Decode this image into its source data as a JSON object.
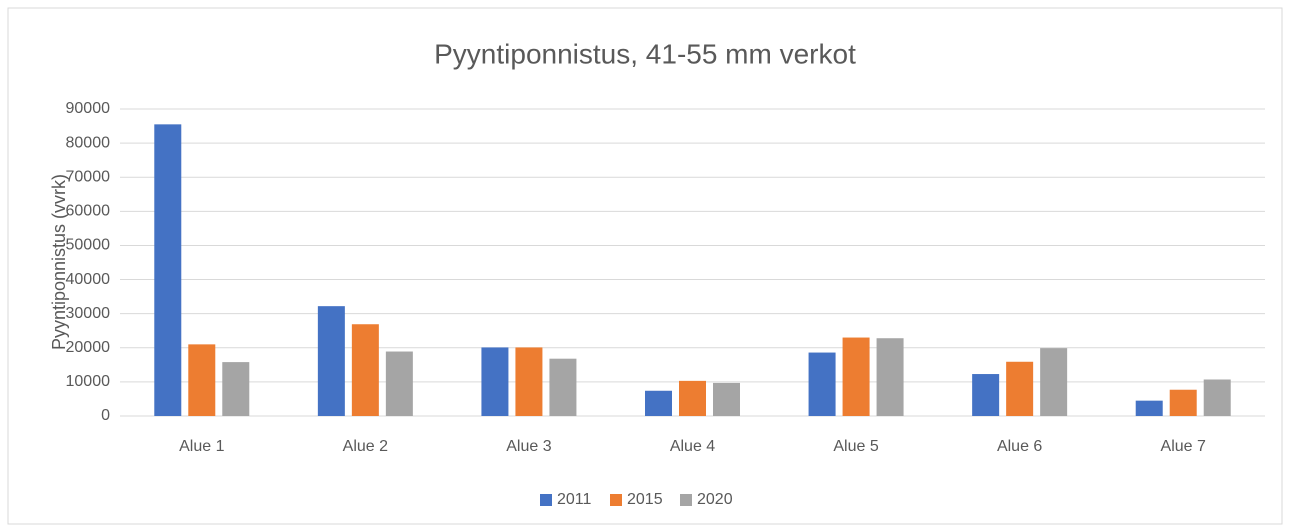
{
  "chart_data": {
    "type": "bar",
    "title": "Pyyntiponnistus, 41-55 mm verkot",
    "y_label": "Pyyntiponnistus (vvrk)",
    "categories": [
      "Alue 1",
      "Alue 2",
      "Alue 3",
      "Alue 4",
      "Alue 5",
      "Alue 6",
      "Alue 7"
    ],
    "series": [
      {
        "name": "2011",
        "color": "#4472c4",
        "values": [
          85500,
          32200,
          20100,
          7400,
          18600,
          12300,
          4500
        ]
      },
      {
        "name": "2015",
        "color": "#ed7d31",
        "values": [
          21000,
          26900,
          20100,
          10300,
          23000,
          15900,
          7700
        ]
      },
      {
        "name": "2020",
        "color": "#a5a5a5",
        "values": [
          15800,
          18900,
          16800,
          9700,
          22800,
          19900,
          10700
        ]
      }
    ],
    "ylim": [
      0,
      90000
    ],
    "yticks": [
      0,
      10000,
      20000,
      30000,
      40000,
      50000,
      60000,
      70000,
      80000,
      90000
    ],
    "grid": true,
    "legend": "bottom"
  }
}
